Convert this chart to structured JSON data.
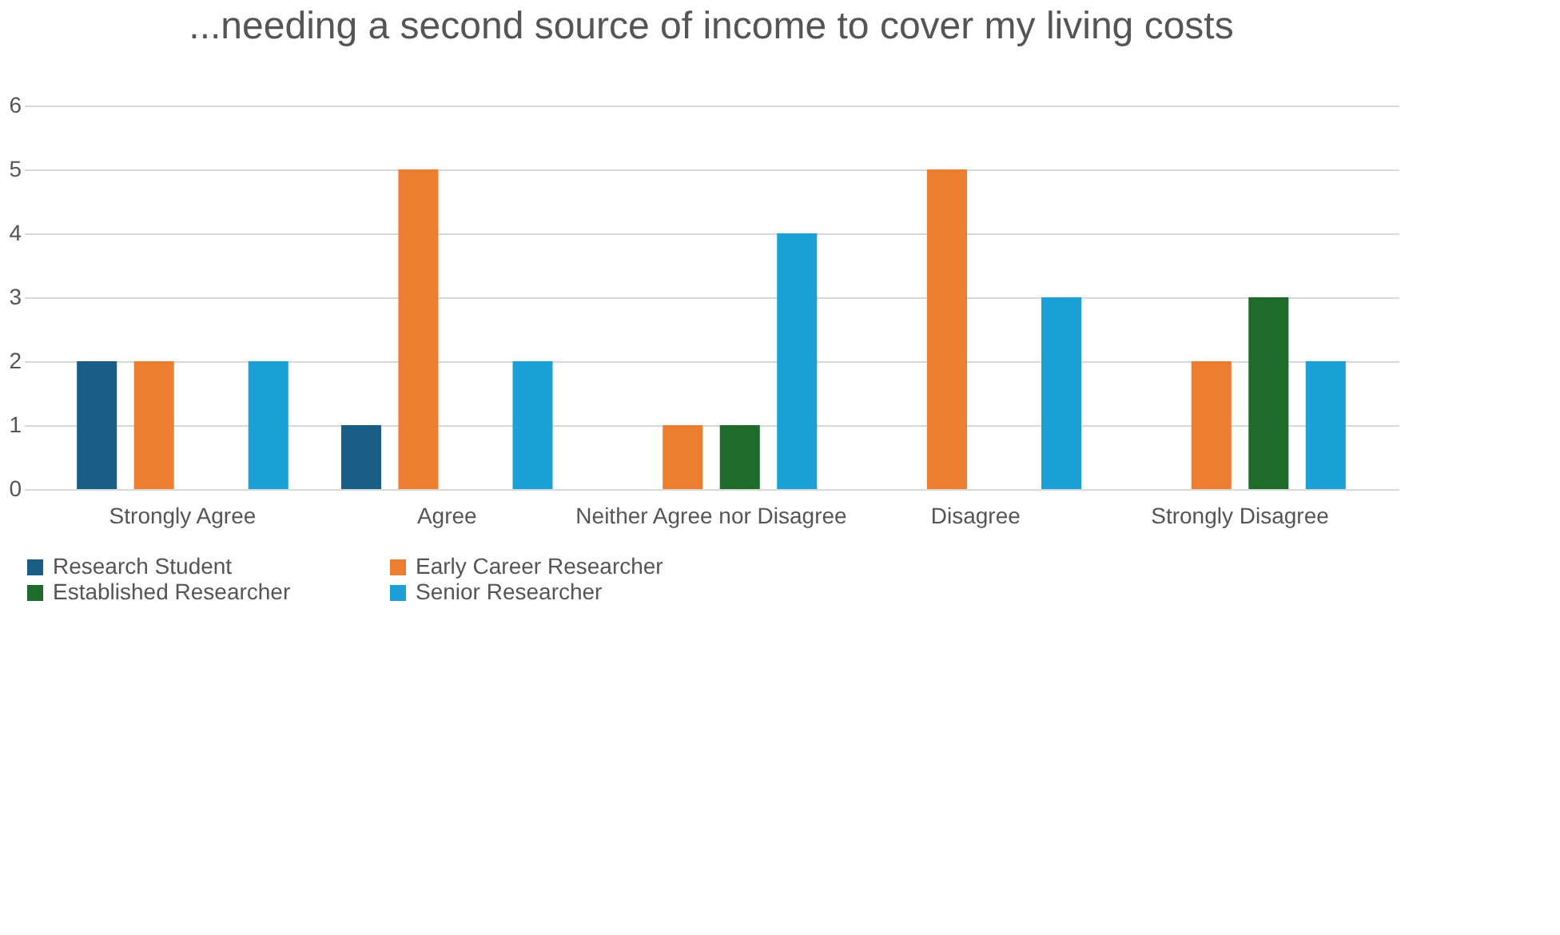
{
  "chart_data": {
    "type": "bar",
    "title": "...needing a second source of income to cover my living costs",
    "categories": [
      "Strongly Agree",
      "Agree",
      "Neither Agree nor Disagree",
      "Disagree",
      "Strongly Disagree"
    ],
    "series": [
      {
        "name": "Research Student",
        "color": "#1a5e85",
        "values": [
          2,
          1,
          0,
          0,
          0
        ]
      },
      {
        "name": "Early Career Researcher",
        "color": "#ed7d31",
        "values": [
          2,
          5,
          1,
          5,
          2
        ]
      },
      {
        "name": "Established Researcher",
        "color": "#1e6b2b",
        "values": [
          0,
          0,
          1,
          0,
          3
        ]
      },
      {
        "name": "Senior Researcher",
        "color": "#1ba1d6",
        "values": [
          2,
          2,
          4,
          3,
          2
        ]
      }
    ],
    "ylim": [
      0,
      6
    ],
    "yticks": [
      0,
      1,
      2,
      3,
      4,
      5,
      6
    ],
    "grid": "y",
    "legend": "bottom"
  }
}
